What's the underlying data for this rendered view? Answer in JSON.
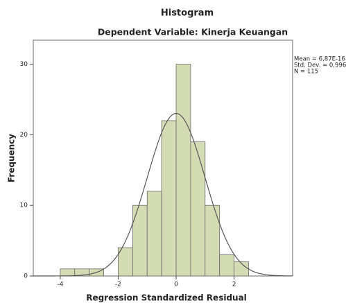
{
  "chart_data": {
    "type": "histogram",
    "title": "Histogram",
    "subtitle": "Dependent Variable: Kinerja Keuangan",
    "xlabel": "Regression Standardized Residual",
    "ylabel": "Frequency",
    "bins": [
      -4,
      -3.5,
      -3,
      -2.5,
      -2,
      -1.5,
      -1,
      -0.5,
      0,
      0.5,
      1,
      1.5,
      2,
      2.5
    ],
    "values": [
      1,
      1,
      1,
      0,
      4,
      10,
      12,
      22,
      30,
      19,
      10,
      3,
      2
    ],
    "color": "#d4dcb4",
    "xlim": [
      -4.93,
      4.02
    ],
    "ylim": [
      0,
      33.4
    ],
    "xticks": [
      -4,
      -2,
      0,
      2
    ],
    "yticks": [
      0,
      10,
      20,
      30
    ],
    "stats": [
      {
        "value": 6.87e-16,
        "label": "Mean = 6,87E-16"
      },
      {
        "value": 0.996,
        "label": "Std. Dev. = 0,996"
      },
      {
        "value": 115,
        "label": "N = 115"
      }
    ],
    "normal_curve": true
  }
}
